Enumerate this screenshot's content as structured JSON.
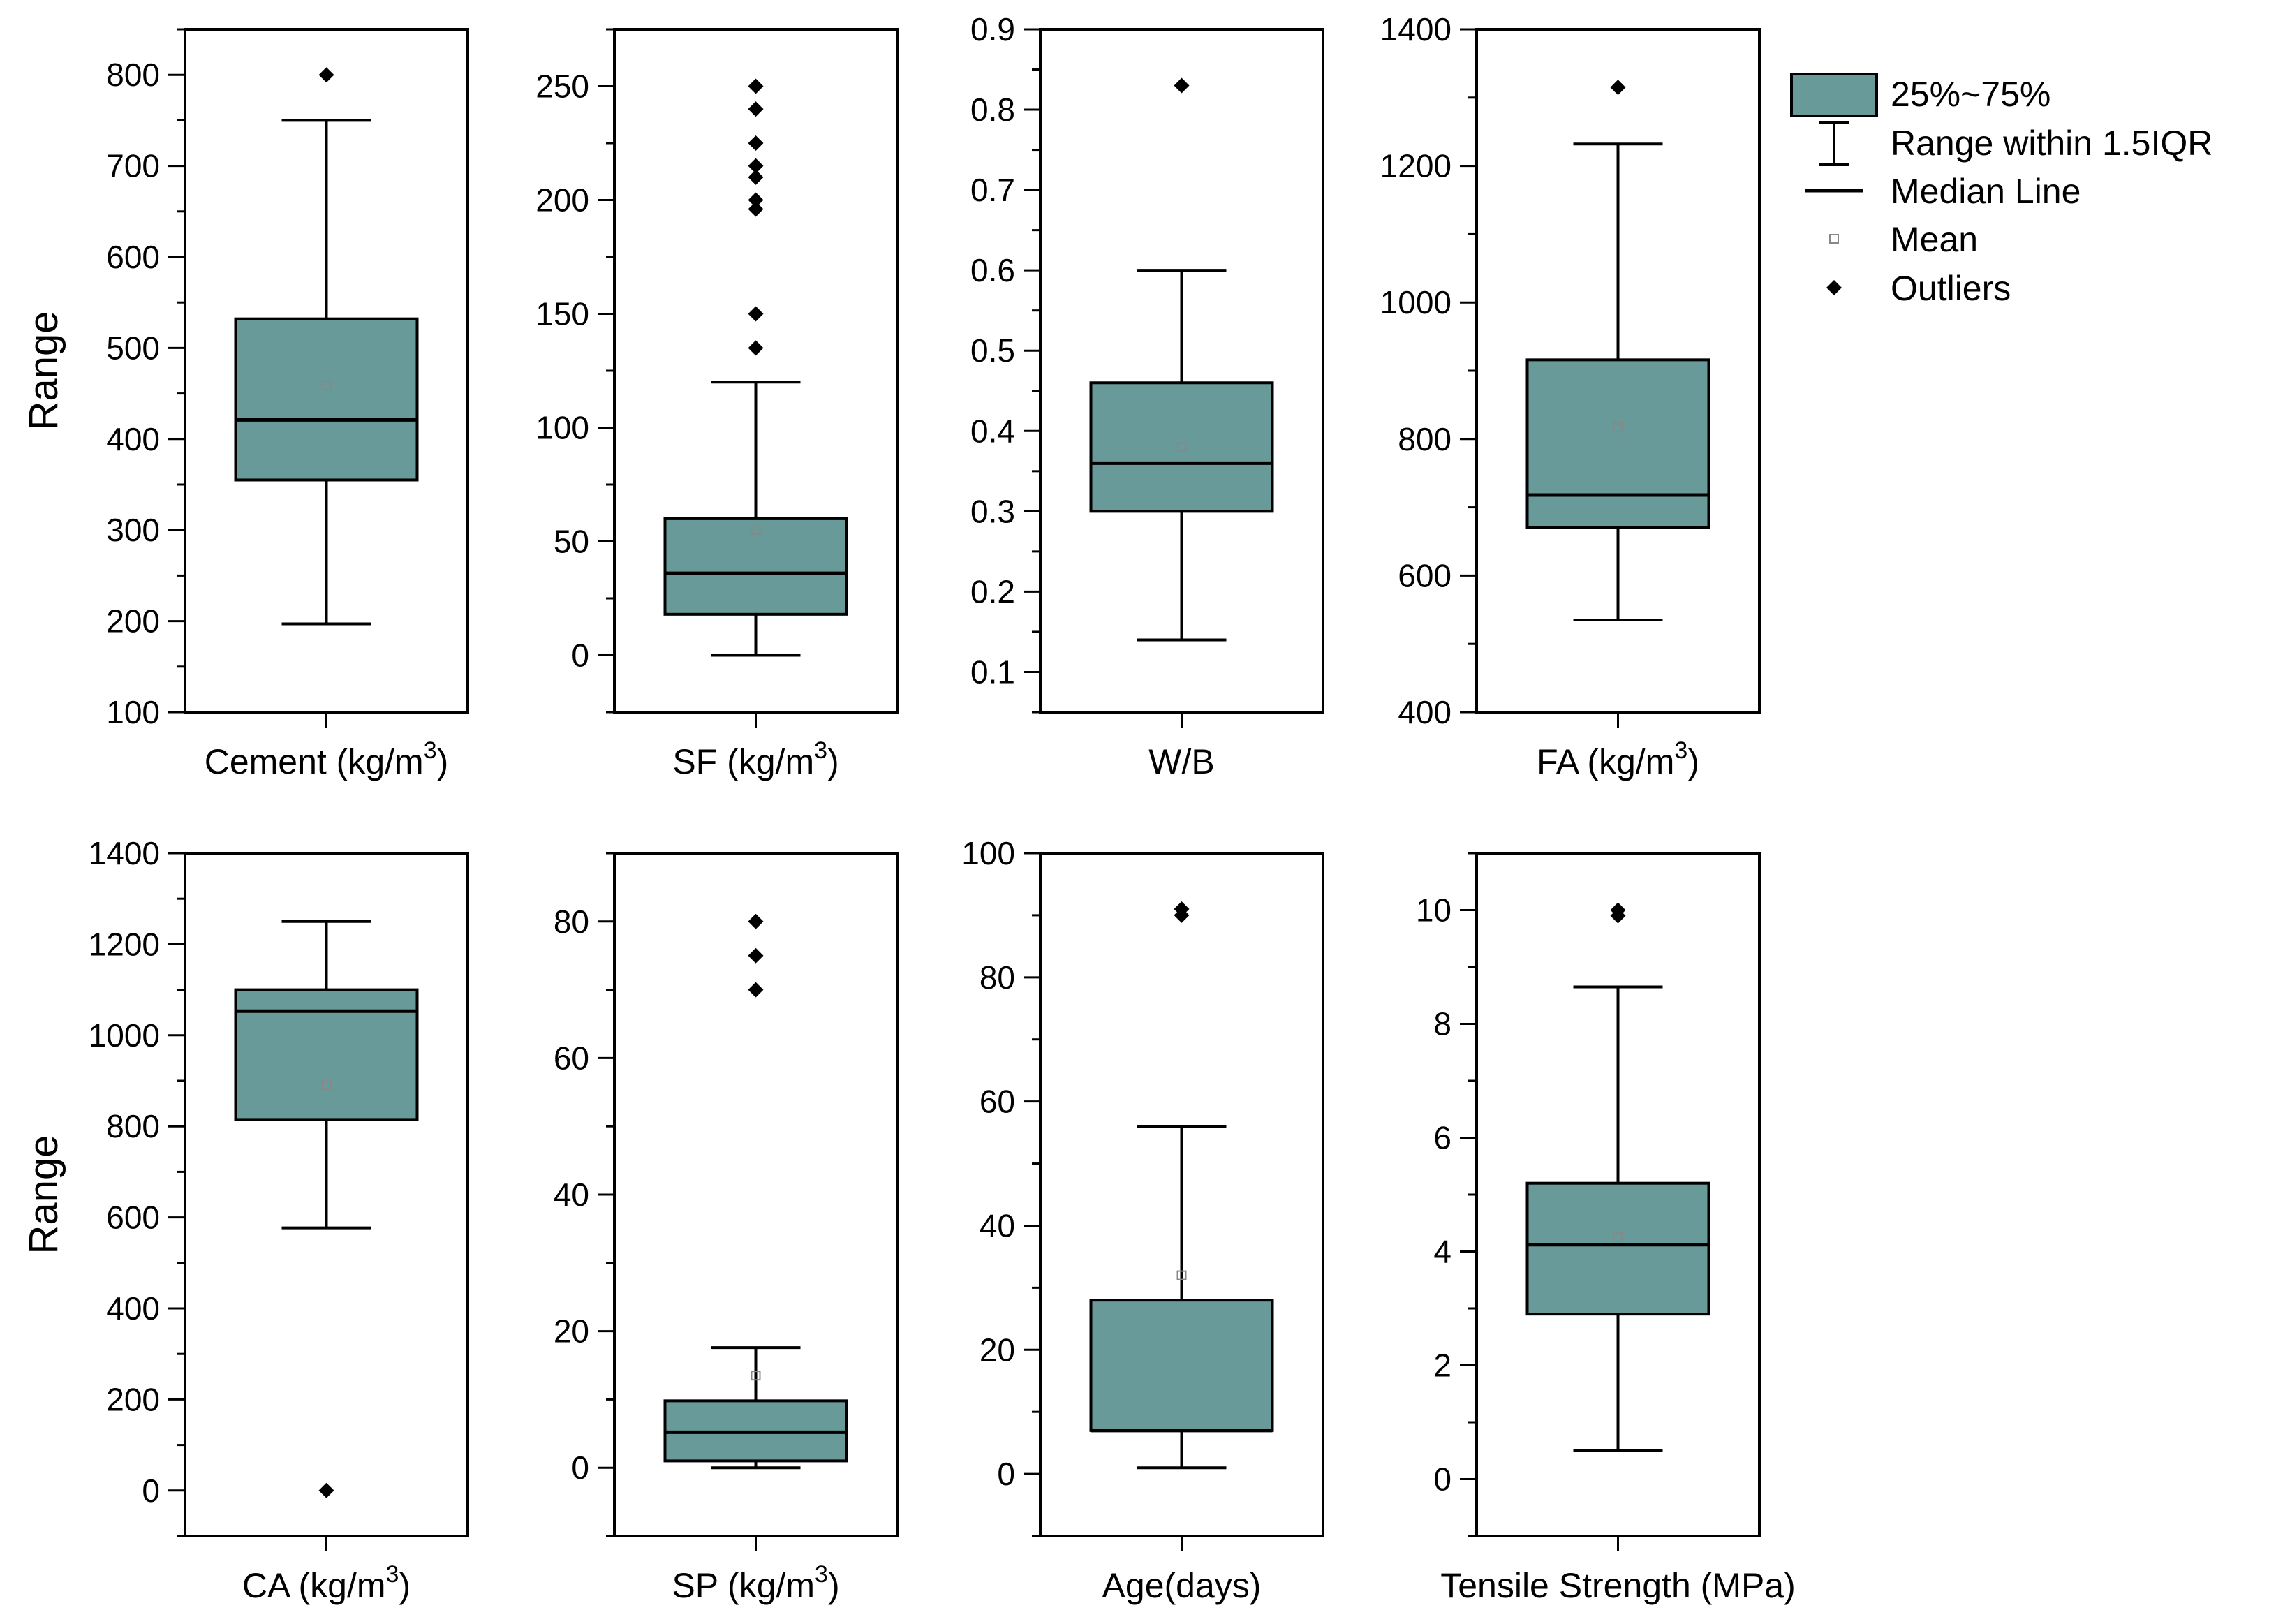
{
  "chart_data": {
    "type": "boxplot",
    "legend": {
      "placement": "top-right",
      "entries": [
        {
          "label": "25%~75%",
          "symbol": "box"
        },
        {
          "label": "Range within 1.5IQR",
          "symbol": "whisker"
        },
        {
          "label": "Median Line",
          "symbol": "line"
        },
        {
          "label": "Mean",
          "symbol": "open-square"
        },
        {
          "label": "Outliers",
          "symbol": "diamond"
        }
      ]
    },
    "colors": {
      "box_fill": "#679a98",
      "stroke": "#000000",
      "mean_marker": "#888888"
    },
    "panels": [
      {
        "xlabel": "Cement (kg/m",
        "xlabel_sup": "3",
        "xlabel_tail": ")",
        "ylabel": "Range",
        "ylim": [
          100,
          850
        ],
        "yticks": [
          100,
          200,
          300,
          400,
          500,
          600,
          700,
          800
        ],
        "minor_step": 50,
        "whisker_low": 197,
        "q1": 355,
        "median": 421,
        "q3": 532,
        "whisker_high": 750,
        "mean": 459,
        "outliers": [
          800
        ]
      },
      {
        "xlabel": "SF (kg/m",
        "xlabel_sup": "3",
        "xlabel_tail": ")",
        "ylabel": "",
        "ylim": [
          -25,
          275
        ],
        "yticks": [
          0,
          50,
          100,
          150,
          200,
          250
        ],
        "minor_step": 25,
        "whisker_low": 0,
        "q1": 18,
        "median": 36,
        "q3": 60,
        "whisker_high": 120,
        "mean": 55,
        "outliers": [
          135,
          150,
          196,
          200,
          210,
          215,
          225,
          240,
          250
        ]
      },
      {
        "xlabel": "W/B",
        "xlabel_sup": "",
        "xlabel_tail": "",
        "ylabel": "",
        "ylim": [
          0.05,
          0.9
        ],
        "yticks": [
          0.1,
          0.2,
          0.3,
          0.4,
          0.5,
          0.6,
          0.7,
          0.8,
          0.9
        ],
        "minor_step": 0.05,
        "whisker_low": 0.14,
        "q1": 0.3,
        "median": 0.36,
        "q3": 0.46,
        "whisker_high": 0.6,
        "mean": 0.38,
        "outliers": [
          0.83
        ]
      },
      {
        "xlabel": "FA (kg/m",
        "xlabel_sup": "3",
        "xlabel_tail": ")",
        "ylabel": "",
        "ylim": [
          400,
          1400
        ],
        "yticks": [
          400,
          600,
          800,
          1000,
          1200,
          1400
        ],
        "minor_step": 100,
        "whisker_low": 535,
        "q1": 670,
        "median": 718,
        "q3": 916,
        "whisker_high": 1232,
        "mean": 817,
        "outliers": [
          1315
        ]
      },
      {
        "xlabel": "CA (kg/m",
        "xlabel_sup": "3",
        "xlabel_tail": ")",
        "ylabel": "Range",
        "ylim": [
          -100,
          1400
        ],
        "yticks": [
          0,
          200,
          400,
          600,
          800,
          1000,
          1200,
          1400
        ],
        "minor_step": 100,
        "whisker_low": 577,
        "q1": 815,
        "median": 1053,
        "q3": 1100,
        "whisker_high": 1250,
        "mean": 892,
        "outliers": [
          0
        ]
      },
      {
        "xlabel": "SP (kg/m",
        "xlabel_sup": "3",
        "xlabel_tail": ")",
        "ylabel": "",
        "ylim": [
          -10,
          90
        ],
        "yticks": [
          0,
          20,
          40,
          60,
          80
        ],
        "minor_step": 10,
        "whisker_low": 0,
        "q1": 1,
        "median": 5.2,
        "q3": 9.8,
        "whisker_high": 17.6,
        "mean": 13.5,
        "outliers": [
          70,
          75,
          80
        ]
      },
      {
        "xlabel": "Age(days)",
        "xlabel_sup": "",
        "xlabel_tail": "",
        "ylabel": "",
        "ylim": [
          -10,
          100
        ],
        "yticks": [
          0,
          20,
          40,
          60,
          80,
          100
        ],
        "minor_step": 10,
        "whisker_low": 1,
        "q1": 7,
        "median": 7,
        "q3": 28,
        "whisker_high": 56,
        "mean": 32,
        "outliers": [
          90,
          91
        ]
      },
      {
        "xlabel": "Tensile Strength (MPa)",
        "xlabel_sup": "",
        "xlabel_tail": "",
        "ylabel": "",
        "ylim": [
          -1,
          11
        ],
        "yticks": [
          0,
          2,
          4,
          6,
          8,
          10
        ],
        "minor_step": 1,
        "whisker_low": 0.5,
        "q1": 2.9,
        "median": 4.12,
        "q3": 5.2,
        "whisker_high": 8.65,
        "mean": 4.25,
        "outliers": [
          9.9,
          10
        ]
      }
    ]
  }
}
